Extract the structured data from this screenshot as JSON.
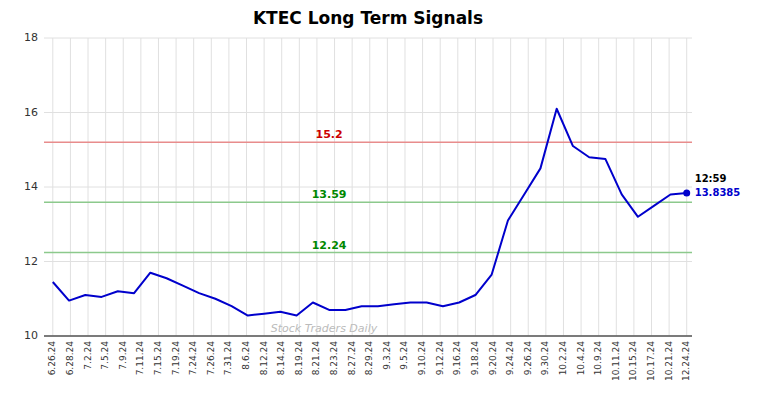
{
  "chart_data": {
    "type": "line",
    "title": "KTEC Long Term Signals",
    "x": [
      0,
      0.923076923077,
      1.846153846154,
      2.769230769231,
      3.692307692308,
      4.615384615385,
      5.538461538462,
      6.461538461538,
      7.384615384615,
      8.307692307692,
      9.230769230769,
      10.153846153846,
      11.076923076923,
      12,
      12.923076923077,
      13.846153846154,
      14.769230769231,
      15.692307692308,
      16.615384615385,
      17.538461538462,
      18.461538461538,
      19.384615384615,
      20.307692307692,
      21.230769230769,
      22.153846153846,
      23.076923076923,
      24,
      24.923076923077,
      25.846153846154,
      26.769230769231,
      27.692307692308,
      28.615384615385,
      29.538461538462,
      30.461538461538,
      31.384615384615,
      32.307692307692,
      33.230769230769,
      34.153846153846,
      35.076923076923,
      36
    ],
    "series": [
      {
        "color": "#0000cc",
        "values": [
          11.45,
          10.95,
          11.1,
          11.05,
          11.2,
          11.15,
          11.7,
          11.55,
          11.35,
          11.15,
          11.0,
          10.8,
          10.55,
          10.6,
          10.65,
          10.55,
          10.9,
          10.7,
          10.7,
          10.8,
          10.8,
          10.85,
          10.9,
          10.9,
          10.8,
          10.9,
          11.1,
          11.65,
          13.1,
          13.8,
          14.5,
          16.1,
          15.1,
          14.8,
          14.75,
          13.8,
          13.2,
          13.5,
          13.8,
          13.8385
        ]
      }
    ],
    "xlim": [
      -0.5,
      36.3
    ],
    "xticks": [
      {
        "value": 0,
        "label": "6.26.24"
      },
      {
        "value": 1,
        "label": "6.28.24"
      },
      {
        "value": 2,
        "label": "7.2.24"
      },
      {
        "value": 3,
        "label": "7.5.24"
      },
      {
        "value": 4,
        "label": "7.9.24"
      },
      {
        "value": 5,
        "label": "7.11.24"
      },
      {
        "value": 6,
        "label": "7.15.24"
      },
      {
        "value": 7,
        "label": "7.19.24"
      },
      {
        "value": 8,
        "label": "7.24.24"
      },
      {
        "value": 9,
        "label": "7.26.24"
      },
      {
        "value": 10,
        "label": "7.31.24"
      },
      {
        "value": 11,
        "label": "8.6.24"
      },
      {
        "value": 12,
        "label": "8.12.24"
      },
      {
        "value": 13,
        "label": "8.14.24"
      },
      {
        "value": 14,
        "label": "8.19.24"
      },
      {
        "value": 15,
        "label": "8.21.24"
      },
      {
        "value": 16,
        "label": "8.23.24"
      },
      {
        "value": 17,
        "label": "8.27.24"
      },
      {
        "value": 18,
        "label": "8.29.24"
      },
      {
        "value": 19,
        "label": "9.3.24"
      },
      {
        "value": 20,
        "label": "9.5.24"
      },
      {
        "value": 21,
        "label": "9.10.24"
      },
      {
        "value": 22,
        "label": "9.12.24"
      },
      {
        "value": 23,
        "label": "9.16.24"
      },
      {
        "value": 24,
        "label": "9.18.24"
      },
      {
        "value": 25,
        "label": "9.20.24"
      },
      {
        "value": 26,
        "label": "9.24.24"
      },
      {
        "value": 27,
        "label": "9.26.24"
      },
      {
        "value": 28,
        "label": "9.30.24"
      },
      {
        "value": 29,
        "label": "10.2.24"
      },
      {
        "value": 30,
        "label": "10.4.24"
      },
      {
        "value": 31,
        "label": "10.9.24"
      },
      {
        "value": 32,
        "label": "10.11.24"
      },
      {
        "value": 33,
        "label": "10.15.24"
      },
      {
        "value": 34,
        "label": "10.17.24"
      },
      {
        "value": 35,
        "label": "10.21.24"
      },
      {
        "value": 36,
        "label": "12.24.24"
      }
    ],
    "ylim": [
      10,
      18
    ],
    "yticks": [
      10,
      12,
      14,
      16,
      18
    ],
    "grid": true,
    "reference_lines": [
      {
        "value": 15.2,
        "label": "15.2",
        "color": "#cc0000"
      },
      {
        "value": 13.59,
        "label": "13.59",
        "color": "#008800"
      },
      {
        "value": 12.24,
        "label": "12.24",
        "color": "#008800"
      }
    ],
    "watermark": "Stock Traders Daily",
    "last_point_labels": [
      "12:59",
      "13.8385"
    ]
  }
}
